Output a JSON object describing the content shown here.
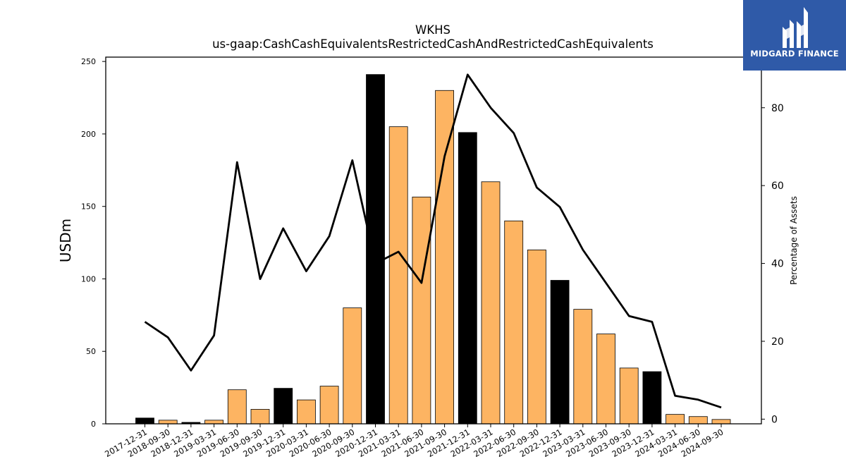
{
  "chart_data": {
    "type": "bar",
    "title": "WKHS",
    "subtitle": "us-gaap:CashCashEquivalentsRestrictedCashAndRestrictedCashEquivalents",
    "ylabel": "USDm",
    "y2label": "Percentage of Assets",
    "ylim": [
      0,
      253
    ],
    "y2lim": [
      -1.2,
      93
    ],
    "yticks": [
      0,
      50,
      100,
      150,
      200,
      250
    ],
    "y2ticks": [
      0,
      20,
      40,
      60,
      80
    ],
    "categories": [
      "2017-12-31",
      "2018-09-30",
      "2018-12-31",
      "2019-03-31",
      "2019-06-30",
      "2019-09-30",
      "2019-12-31",
      "2020-03-31",
      "2020-06-30",
      "2020-09-30",
      "2020-12-31",
      "2021-03-31",
      "2021-06-30",
      "2021-09-30",
      "2021-12-31",
      "2022-03-31",
      "2022-06-30",
      "2022-09-30",
      "2022-12-31",
      "2023-03-31",
      "2023-06-30",
      "2023-09-30",
      "2023-12-31",
      "2024-03-31",
      "2024-06-30",
      "2024-09-30"
    ],
    "series": [
      {
        "type": "bar",
        "axis": "left",
        "values": [
          4,
          2.5,
          1,
          2.5,
          23.5,
          10,
          24.5,
          16.5,
          26,
          80,
          241,
          205,
          156.5,
          230,
          201,
          167,
          140,
          120,
          99,
          79,
          62,
          38.5,
          36,
          6.5,
          5,
          3
        ],
        "colors": [
          "#000000",
          "#fdb462",
          "#000000",
          "#fdb462",
          "#fdb462",
          "#fdb462",
          "#000000",
          "#fdb462",
          "#fdb462",
          "#fdb462",
          "#000000",
          "#fdb462",
          "#fdb462",
          "#fdb462",
          "#000000",
          "#fdb462",
          "#fdb462",
          "#fdb462",
          "#000000",
          "#fdb462",
          "#fdb462",
          "#fdb462",
          "#000000",
          "#fdb462",
          "#fdb462",
          "#fdb462"
        ]
      },
      {
        "type": "line",
        "axis": "right",
        "color": "#000000",
        "values": [
          25,
          21,
          12.5,
          21.5,
          66,
          36,
          49,
          38,
          47,
          66.5,
          40,
          43,
          35,
          67.5,
          88.5,
          80,
          73.5,
          59.5,
          54.5,
          43.5,
          35,
          26.5,
          25,
          6,
          5,
          3
        ]
      }
    ]
  },
  "logo": {
    "text": "MIDGARD FINANCE",
    "background": "#2f5aa8",
    "icon": "midgard-logo-icon"
  }
}
